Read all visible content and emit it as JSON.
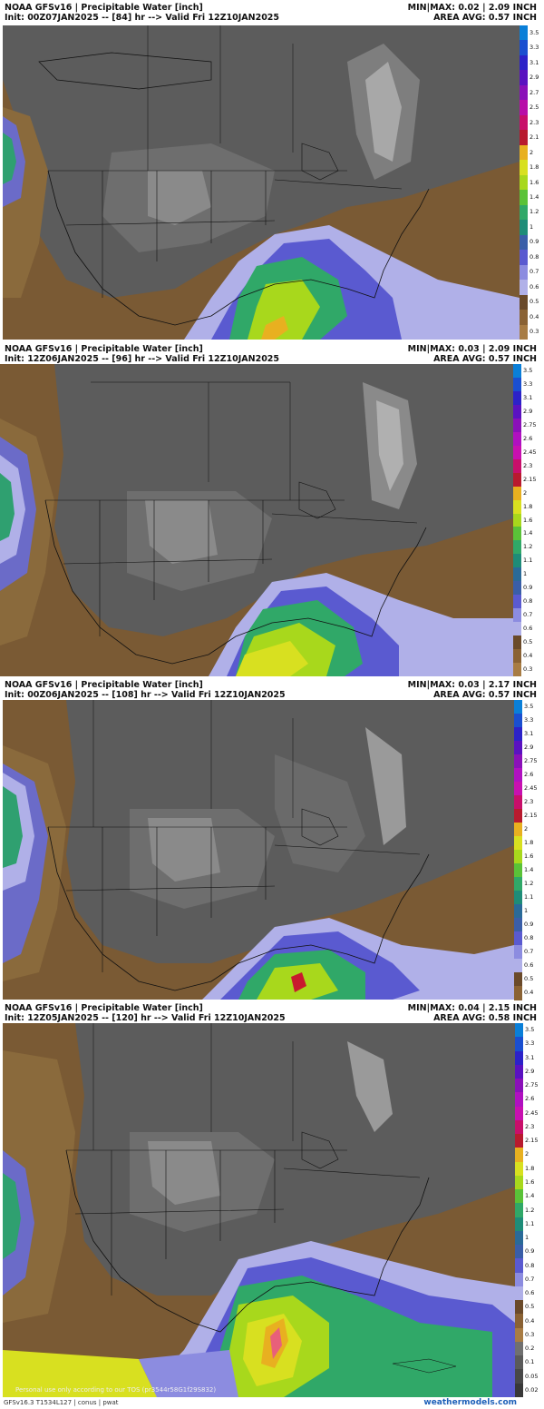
{
  "panels": [
    {
      "title": "NOAA GFSv16 | Precipitable Water [inch]",
      "init": "Init: 00Z07JAN2025 -- [84] hr --> Valid Fri 12Z10JAN2025",
      "minmax": "MIN|MAX: 0.02 | 2.09 INCH",
      "area_avg": "AREA AVG: 0.57 INCH"
    },
    {
      "title": "NOAA GFSv16 | Precipitable Water [inch]",
      "init": "Init: 12Z06JAN2025 -- [96] hr --> Valid Fri 12Z10JAN2025",
      "minmax": "MIN|MAX: 0.03 | 2.09 INCH",
      "area_avg": "AREA AVG: 0.57 INCH"
    },
    {
      "title": "NOAA GFSv16 | Precipitable Water [inch]",
      "init": "Init: 00Z06JAN2025 -- [108] hr --> Valid Fri 12Z10JAN2025",
      "minmax": "MIN|MAX: 0.03 | 2.17 INCH",
      "area_avg": "AREA AVG: 0.57 INCH"
    },
    {
      "title": "NOAA GFSv16 | Precipitable Water [inch]",
      "init": "Init: 12Z05JAN2025 -- [120] hr --> Valid Fri 12Z10JAN2025",
      "minmax": "MIN|MAX: 0.04 | 2.15 INCH",
      "area_avg": "AREA AVG: 0.58 INCH"
    }
  ],
  "colorbar_panel1": {
    "labels": [
      "3.5",
      "3.3",
      "3.1",
      "2.9",
      "2.7",
      "2.5",
      "2.3",
      "2.1",
      "2",
      "1.8",
      "1.6",
      "1.4",
      "1.2",
      "1",
      "0.9",
      "0.8",
      "0.7",
      "0.6",
      "0.5",
      "0.4",
      "0.3"
    ],
    "colors": [
      "#0a7fd8",
      "#1a4fd0",
      "#2c22c8",
      "#5a12c0",
      "#8a10b8",
      "#b80ea8",
      "#c80f6a",
      "#b81a2e",
      "#e8b020",
      "#d8e020",
      "#a8d81c",
      "#5ac238",
      "#30a868",
      "#1e8c78",
      "#3a5ea8",
      "#5a5ad0",
      "#8c8ce0",
      "#b0b0e8",
      "#6a4a2a",
      "#8a6234",
      "#a87c44"
    ]
  },
  "colorbar_panel2": {
    "labels": [
      "3.5",
      "3.3",
      "3.1",
      "2.9",
      "2.75",
      "2.6",
      "2.45",
      "2.3",
      "2.15",
      "2",
      "1.8",
      "1.6",
      "1.4",
      "1.2",
      "1.1",
      "1",
      "0.9",
      "0.8",
      "0.7",
      "0.6",
      "0.5",
      "0.4",
      "0.3"
    ],
    "colors": [
      "#0a7fd8",
      "#1a4fd0",
      "#2c22c8",
      "#5a12c0",
      "#8a10b8",
      "#b010c0",
      "#c810b0",
      "#c80f6a",
      "#b81a2e",
      "#e8b020",
      "#d8e020",
      "#a8d81c",
      "#5ac238",
      "#30a868",
      "#1e8c78",
      "#2a6a98",
      "#3a5ea8",
      "#5a5ad0",
      "#8c8ce0",
      "#b0b0e8",
      "#6a4a2a",
      "#8a6234",
      "#a87c44"
    ]
  },
  "colorbar_panel3": {
    "labels": [
      "3.5",
      "3.3",
      "3.1",
      "2.9",
      "2.75",
      "2.6",
      "2.45",
      "2.3",
      "2.15",
      "2",
      "1.8",
      "1.6",
      "1.4",
      "1.2",
      "1.1",
      "1",
      "0.9",
      "0.8",
      "0.7",
      "0.6",
      "0.5",
      "0.4"
    ],
    "colors": [
      "#0a7fd8",
      "#1a4fd0",
      "#2c22c8",
      "#5a12c0",
      "#8a10b8",
      "#b010c0",
      "#c810b0",
      "#c80f6a",
      "#b81a2e",
      "#e8b020",
      "#d8e020",
      "#a8d81c",
      "#5ac238",
      "#30a868",
      "#1e8c78",
      "#2a6a98",
      "#3a5ea8",
      "#5a5ad0",
      "#8c8ce0",
      "#b0b0e8",
      "#6a4a2a",
      "#8a6234"
    ]
  },
  "colorbar_panel4": {
    "labels": [
      "3.5",
      "3.3",
      "3.1",
      "2.9",
      "2.75",
      "2.6",
      "2.45",
      "2.3",
      "2.15",
      "2",
      "1.8",
      "1.6",
      "1.4",
      "1.2",
      "1.1",
      "1",
      "0.9",
      "0.8",
      "0.7",
      "0.6",
      "0.5",
      "0.4",
      "0.3",
      "0.2",
      "0.1",
      "0.05",
      "0.02"
    ],
    "colors": [
      "#0a7fd8",
      "#1a4fd0",
      "#2c22c8",
      "#5a12c0",
      "#8a10b8",
      "#b010c0",
      "#c810b0",
      "#c80f6a",
      "#b81a2e",
      "#e8b020",
      "#d8e020",
      "#a8d81c",
      "#5ac238",
      "#30a868",
      "#1e8c78",
      "#2a6a98",
      "#3a5ea8",
      "#5a5ad0",
      "#8c8ce0",
      "#b0b0e8",
      "#6a4a2a",
      "#8a6234",
      "#a87c44",
      "#707070",
      "#5a5a5a",
      "#484848",
      "#383838"
    ]
  },
  "disclaimer": "Personal use only according to our TOS (pr3544r58G1f29S832)",
  "footer": {
    "left": "GFSv16.3 T1534L127 | conus | pwat",
    "right": "weathermodels.com"
  }
}
